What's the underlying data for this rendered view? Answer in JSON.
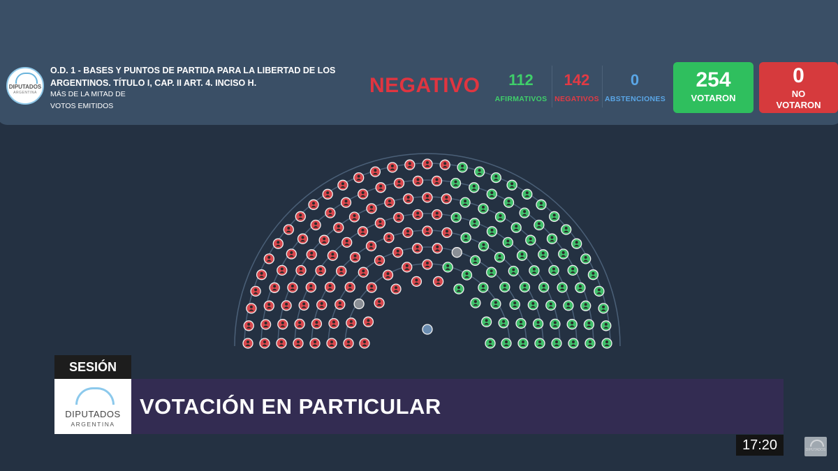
{
  "header": {
    "logo_text_1": "DIPUTADOS",
    "logo_text_2": "ARGENTINA",
    "title": "O.D. 1 - BASES Y PUNTOS DE PARTIDA PARA LA LIBERTAD DE LOS ARGENTINOS. TÍTULO I, CAP. II ART. 4. INCISO H.",
    "majority_line_1": "MÁS DE LA MITAD DE",
    "majority_line_2": "VOTOS EMITIDOS"
  },
  "result": "NEGATIVO",
  "stats": {
    "afirmativos": {
      "value": "112",
      "label": "AFIRMATIVOS",
      "color": "#3fcf6a"
    },
    "negativos": {
      "value": "142",
      "label": "NEGATIVOS",
      "color": "#e23a44"
    },
    "abstenciones": {
      "value": "0",
      "label": "ABSTENCIONES",
      "color": "#5aa6e6"
    }
  },
  "boxes": {
    "votaron": {
      "value": "254",
      "label": "VOTARON",
      "color": "#2fbf5e"
    },
    "no_votaron": {
      "value": "0",
      "label_1": "NO",
      "label_2": "VOTARON",
      "color": "#d63a3d"
    }
  },
  "chamber": {
    "vote_colors": {
      "affirmative": "#3fbf6a",
      "negative": "#d9474d",
      "absent": "#8a8f96",
      "president": "#6a8cb0"
    },
    "affirmative": 112,
    "negative": 142,
    "absent": 2
  },
  "lower_third": {
    "tag": "SESIÓN",
    "logo_text_1": "DIPUTADOS",
    "logo_text_2": "ARGENTINA",
    "text": "VOTACIÓN EN PARTICULAR"
  },
  "clock": "17:20",
  "watermark": "DIPUTADOS"
}
